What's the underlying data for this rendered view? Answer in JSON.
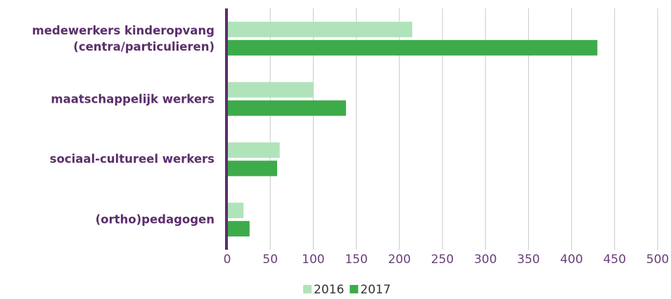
{
  "chart_data": {
    "type": "bar",
    "orientation": "horizontal",
    "categories": [
      "medewerkers kinderopvang\n(centra/particulieren)",
      "maatschappelijk werkers",
      "sociaal-cultureel werkers",
      "(ortho)pedagogen"
    ],
    "series": [
      {
        "name": "2016",
        "color": "#b1e3bb",
        "values": [
          215,
          100,
          61,
          19
        ]
      },
      {
        "name": "2017",
        "color": "#3dab4a",
        "values": [
          430,
          138,
          58,
          26
        ]
      }
    ],
    "xlim": [
      0,
      500
    ],
    "xticks": [
      0,
      50,
      100,
      150,
      200,
      250,
      300,
      350,
      400,
      450,
      500
    ],
    "grid": true,
    "legend": "bottom"
  }
}
